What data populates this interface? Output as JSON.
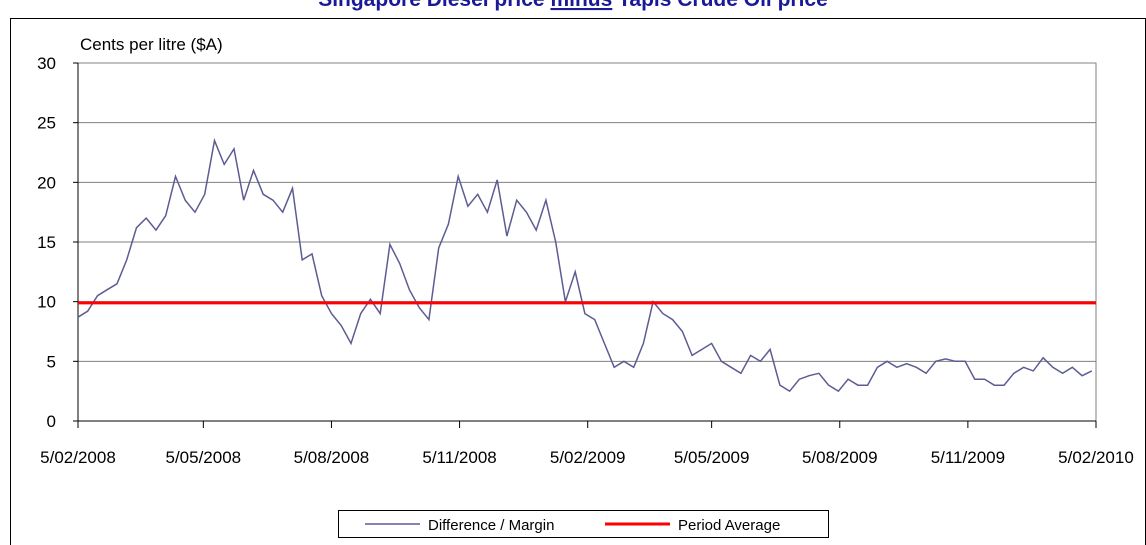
{
  "chart_data": {
    "type": "line",
    "title": {
      "before": "Singapore Diesel price ",
      "emphasis": "minus",
      "after": " Tapis Crude Oil price"
    },
    "y_label": "Cents per litre ($A)",
    "ylim": [
      0,
      30
    ],
    "yticks": [
      0,
      5,
      10,
      15,
      20,
      25,
      30
    ],
    "xlim": [
      "2008-02-05",
      "2010-02-05"
    ],
    "xticks": [
      {
        "value": "2008-02-05",
        "label": "5/02/2008"
      },
      {
        "value": "2008-05-05",
        "label": "5/05/2008"
      },
      {
        "value": "2008-08-05",
        "label": "5/08/2008"
      },
      {
        "value": "2008-11-05",
        "label": "5/11/2008"
      },
      {
        "value": "2009-02-05",
        "label": "5/02/2009"
      },
      {
        "value": "2009-05-05",
        "label": "5/05/2009"
      },
      {
        "value": "2009-08-05",
        "label": "5/08/2009"
      },
      {
        "value": "2009-11-05",
        "label": "5/11/2009"
      },
      {
        "value": "2010-02-05",
        "label": "5/02/2010"
      }
    ],
    "grid": true,
    "x": [
      "2008-02-05",
      "2008-02-12",
      "2008-02-19",
      "2008-02-26",
      "2008-03-04",
      "2008-03-11",
      "2008-03-18",
      "2008-03-25",
      "2008-04-01",
      "2008-04-08",
      "2008-04-15",
      "2008-04-22",
      "2008-04-29",
      "2008-05-06",
      "2008-05-13",
      "2008-05-20",
      "2008-05-27",
      "2008-06-03",
      "2008-06-10",
      "2008-06-17",
      "2008-06-24",
      "2008-07-01",
      "2008-07-08",
      "2008-07-15",
      "2008-07-22",
      "2008-07-29",
      "2008-08-05",
      "2008-08-12",
      "2008-08-19",
      "2008-08-26",
      "2008-09-02",
      "2008-09-09",
      "2008-09-16",
      "2008-09-23",
      "2008-09-30",
      "2008-10-07",
      "2008-10-14",
      "2008-10-21",
      "2008-10-28",
      "2008-11-04",
      "2008-11-11",
      "2008-11-18",
      "2008-11-25",
      "2008-12-02",
      "2008-12-09",
      "2008-12-16",
      "2008-12-23",
      "2008-12-30",
      "2009-01-06",
      "2009-01-13",
      "2009-01-20",
      "2009-01-27",
      "2009-02-03",
      "2009-02-10",
      "2009-02-17",
      "2009-02-24",
      "2009-03-03",
      "2009-03-10",
      "2009-03-17",
      "2009-03-24",
      "2009-03-31",
      "2009-04-07",
      "2009-04-14",
      "2009-04-21",
      "2009-04-28",
      "2009-05-05",
      "2009-05-12",
      "2009-05-19",
      "2009-05-26",
      "2009-06-02",
      "2009-06-09",
      "2009-06-16",
      "2009-06-23",
      "2009-06-30",
      "2009-07-07",
      "2009-07-14",
      "2009-07-21",
      "2009-07-28",
      "2009-08-04",
      "2009-08-11",
      "2009-08-18",
      "2009-08-25",
      "2009-09-01",
      "2009-09-08",
      "2009-09-15",
      "2009-09-22",
      "2009-09-29",
      "2009-10-06",
      "2009-10-13",
      "2009-10-20",
      "2009-10-27",
      "2009-11-03",
      "2009-11-10",
      "2009-11-17",
      "2009-11-24",
      "2009-12-01",
      "2009-12-08",
      "2009-12-15",
      "2009-12-22",
      "2009-12-29",
      "2010-01-05",
      "2010-01-12",
      "2010-01-19",
      "2010-01-26",
      "2010-02-02"
    ],
    "series": [
      {
        "name": "Difference / Margin",
        "color": "#5c5c94",
        "values": [
          8.7,
          9.2,
          10.5,
          11.0,
          11.5,
          13.5,
          16.2,
          17.0,
          16.0,
          17.2,
          20.5,
          18.5,
          17.5,
          19.0,
          23.5,
          21.5,
          22.8,
          18.5,
          21.0,
          19.0,
          18.5,
          17.5,
          19.5,
          13.5,
          14.0,
          10.5,
          9.0,
          8.0,
          6.5,
          9.0,
          10.2,
          9.0,
          14.8,
          13.2,
          11.0,
          9.5,
          8.5,
          14.5,
          16.5,
          20.5,
          18.0,
          19.0,
          17.5,
          20.2,
          15.5,
          18.5,
          17.5,
          16.0,
          18.5,
          15.0,
          10.0,
          12.5,
          9.0,
          8.5,
          6.5,
          4.5,
          5.0,
          4.5,
          6.5,
          10.0,
          9.0,
          8.5,
          7.5,
          5.5,
          6.0,
          6.5,
          5.0,
          4.5,
          4.0,
          5.5,
          5.0,
          6.0,
          3.0,
          2.5,
          3.5,
          3.8,
          4.0,
          3.0,
          2.5,
          3.5,
          3.0,
          3.0,
          4.5,
          5.0,
          4.5,
          4.8,
          4.5,
          4.0,
          5.0,
          5.2,
          5.0,
          5.0,
          3.5,
          3.5,
          3.0,
          3.0,
          4.0,
          4.5,
          4.2,
          5.3,
          4.5,
          4.0,
          4.5,
          3.8,
          4.2
        ]
      }
    ],
    "average": {
      "name": "Period Average",
      "color": "#ff0000",
      "value": 9.9
    }
  }
}
